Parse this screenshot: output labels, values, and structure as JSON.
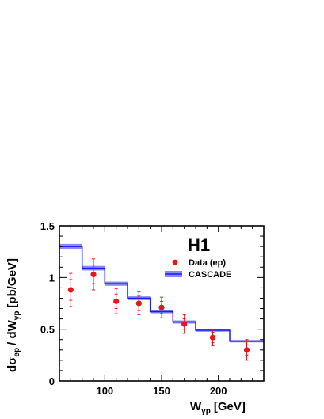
{
  "chart_data": {
    "type": "scatter",
    "label": "H1",
    "xlabel_main": "W",
    "xlabel_sub": "γp",
    "xlabel_unit": "[GeV]",
    "ylabel_main": "dσ",
    "ylabel_sub1": "ep",
    "ylabel_mid": "/ dW",
    "ylabel_sub2": "γp",
    "ylabel_unit": "[pb/GeV]",
    "xlim": [
      60,
      240
    ],
    "ylim": [
      0,
      1.5
    ],
    "x_ticks": [
      100,
      150,
      200
    ],
    "y_ticks": [
      0,
      0.5,
      1,
      1.5
    ],
    "x_tick_labels": [
      "100",
      "150",
      "200"
    ],
    "y_tick_labels": [
      "0",
      "0.5",
      "1",
      "1.5"
    ],
    "legend": {
      "placement": "top-right",
      "entries": [
        "Data (ep)",
        "CASCADE"
      ]
    },
    "series": [
      {
        "name": "Data (ep)",
        "kind": "points-with-errors",
        "color": "#e8161b",
        "x": [
          70,
          90,
          110,
          130,
          150,
          170,
          195,
          225
        ],
        "y": [
          0.88,
          1.03,
          0.77,
          0.75,
          0.71,
          0.55,
          0.42,
          0.3
        ],
        "err_stat": [
          0.1,
          0.09,
          0.07,
          0.07,
          0.06,
          0.05,
          0.05,
          0.05
        ],
        "err_tot": [
          0.16,
          0.15,
          0.12,
          0.11,
          0.1,
          0.09,
          0.08,
          0.1
        ]
      },
      {
        "name": "CASCADE",
        "kind": "histogram-band",
        "color": "#1a1aff",
        "band_color": "#8a8af0",
        "bin_edges": [
          60,
          80,
          100,
          120,
          140,
          160,
          180,
          210,
          240
        ],
        "values": [
          1.3,
          1.09,
          0.94,
          0.8,
          0.67,
          0.57,
          0.49,
          0.385
        ],
        "band_half_width": [
          0.025,
          0.022,
          0.02,
          0.018,
          0.016,
          0.015,
          0.014,
          0.012
        ]
      }
    ]
  }
}
